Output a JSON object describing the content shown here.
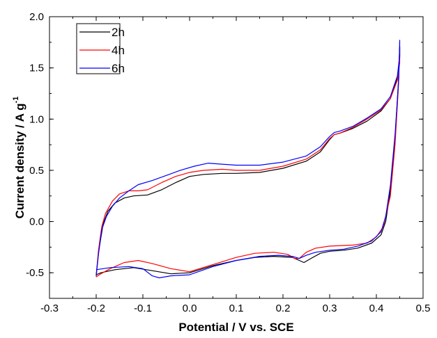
{
  "chart_data": {
    "type": "line",
    "title": "",
    "xlabel": "Potential / V vs. SCE",
    "ylabel": "Current density / A g",
    "ylabel_superscript": "-1",
    "xlim": [
      -0.3,
      0.5
    ],
    "ylim": [
      -0.75,
      2.0
    ],
    "xticks": [
      -0.3,
      -0.2,
      -0.1,
      0.0,
      0.1,
      0.2,
      0.3,
      0.4,
      0.5
    ],
    "xtick_labels": [
      "-0.3",
      "-0.2",
      "-0.1",
      "0.0",
      "0.1",
      "0.2",
      "0.3",
      "0.4",
      "0.5"
    ],
    "yticks": [
      -0.5,
      0.0,
      0.5,
      1.0,
      1.5,
      2.0
    ],
    "ytick_labels": [
      "-0.5",
      "0.0",
      "0.5",
      "1.0",
      "1.5",
      "2.0"
    ],
    "grid": false,
    "legend_position": "top-left",
    "series": [
      {
        "name": "2h",
        "color": "#000000",
        "points": [
          [
            -0.2,
            -0.52
          ],
          [
            -0.195,
            -0.3
          ],
          [
            -0.185,
            -0.02
          ],
          [
            -0.175,
            0.1
          ],
          [
            -0.16,
            0.18
          ],
          [
            -0.14,
            0.23
          ],
          [
            -0.12,
            0.25
          ],
          [
            -0.09,
            0.26
          ],
          [
            -0.06,
            0.31
          ],
          [
            -0.03,
            0.38
          ],
          [
            0.0,
            0.44
          ],
          [
            0.03,
            0.46
          ],
          [
            0.07,
            0.47
          ],
          [
            0.1,
            0.47
          ],
          [
            0.15,
            0.48
          ],
          [
            0.2,
            0.52
          ],
          [
            0.25,
            0.59
          ],
          [
            0.28,
            0.68
          ],
          [
            0.3,
            0.8
          ],
          [
            0.31,
            0.85
          ],
          [
            0.32,
            0.86
          ],
          [
            0.35,
            0.91
          ],
          [
            0.38,
            0.98
          ],
          [
            0.41,
            1.08
          ],
          [
            0.43,
            1.2
          ],
          [
            0.445,
            1.4
          ],
          [
            0.45,
            1.6
          ],
          [
            0.45,
            1.71
          ],
          [
            0.447,
            1.35
          ],
          [
            0.44,
            0.8
          ],
          [
            0.43,
            0.3
          ],
          [
            0.42,
            0.0
          ],
          [
            0.41,
            -0.13
          ],
          [
            0.39,
            -0.21
          ],
          [
            0.36,
            -0.26
          ],
          [
            0.33,
            -0.28
          ],
          [
            0.3,
            -0.29
          ],
          [
            0.28,
            -0.31
          ],
          [
            0.26,
            -0.36
          ],
          [
            0.245,
            -0.4
          ],
          [
            0.235,
            -0.38
          ],
          [
            0.22,
            -0.35
          ],
          [
            0.18,
            -0.34
          ],
          [
            0.14,
            -0.35
          ],
          [
            0.1,
            -0.38
          ],
          [
            0.05,
            -0.43
          ],
          [
            0.0,
            -0.5
          ],
          [
            -0.04,
            -0.51
          ],
          [
            -0.08,
            -0.48
          ],
          [
            -0.12,
            -0.45
          ],
          [
            -0.16,
            -0.47
          ],
          [
            -0.19,
            -0.5
          ],
          [
            -0.2,
            -0.52
          ]
        ]
      },
      {
        "name": "4h",
        "color": "#ff0000",
        "points": [
          [
            -0.2,
            -0.54
          ],
          [
            -0.195,
            -0.28
          ],
          [
            -0.188,
            -0.05
          ],
          [
            -0.18,
            0.08
          ],
          [
            -0.165,
            0.2
          ],
          [
            -0.15,
            0.27
          ],
          [
            -0.13,
            0.3
          ],
          [
            -0.11,
            0.3
          ],
          [
            -0.09,
            0.31
          ],
          [
            -0.06,
            0.38
          ],
          [
            -0.03,
            0.44
          ],
          [
            0.0,
            0.48
          ],
          [
            0.03,
            0.5
          ],
          [
            0.07,
            0.51
          ],
          [
            0.1,
            0.5
          ],
          [
            0.15,
            0.5
          ],
          [
            0.2,
            0.54
          ],
          [
            0.25,
            0.61
          ],
          [
            0.28,
            0.7
          ],
          [
            0.3,
            0.81
          ],
          [
            0.31,
            0.85
          ],
          [
            0.32,
            0.86
          ],
          [
            0.35,
            0.92
          ],
          [
            0.38,
            1.0
          ],
          [
            0.41,
            1.09
          ],
          [
            0.43,
            1.2
          ],
          [
            0.445,
            1.38
          ],
          [
            0.45,
            1.55
          ],
          [
            0.45,
            1.7
          ],
          [
            0.447,
            1.3
          ],
          [
            0.44,
            0.75
          ],
          [
            0.43,
            0.25
          ],
          [
            0.415,
            -0.05
          ],
          [
            0.4,
            -0.15
          ],
          [
            0.38,
            -0.21
          ],
          [
            0.35,
            -0.23
          ],
          [
            0.3,
            -0.24
          ],
          [
            0.27,
            -0.26
          ],
          [
            0.25,
            -0.3
          ],
          [
            0.235,
            -0.36
          ],
          [
            0.225,
            -0.36
          ],
          [
            0.21,
            -0.32
          ],
          [
            0.18,
            -0.3
          ],
          [
            0.14,
            -0.31
          ],
          [
            0.1,
            -0.35
          ],
          [
            0.05,
            -0.42
          ],
          [
            0.0,
            -0.49
          ],
          [
            -0.04,
            -0.46
          ],
          [
            -0.08,
            -0.41
          ],
          [
            -0.11,
            -0.38
          ],
          [
            -0.14,
            -0.4
          ],
          [
            -0.17,
            -0.46
          ],
          [
            -0.19,
            -0.51
          ],
          [
            -0.2,
            -0.54
          ]
        ]
      },
      {
        "name": "6h",
        "color": "#0000ff",
        "points": [
          [
            -0.2,
            -0.53
          ],
          [
            -0.195,
            -0.32
          ],
          [
            -0.188,
            -0.08
          ],
          [
            -0.178,
            0.05
          ],
          [
            -0.165,
            0.15
          ],
          [
            -0.15,
            0.23
          ],
          [
            -0.13,
            0.3
          ],
          [
            -0.11,
            0.36
          ],
          [
            -0.08,
            0.4
          ],
          [
            -0.05,
            0.45
          ],
          [
            -0.02,
            0.5
          ],
          [
            0.01,
            0.54
          ],
          [
            0.04,
            0.57
          ],
          [
            0.07,
            0.56
          ],
          [
            0.1,
            0.55
          ],
          [
            0.15,
            0.55
          ],
          [
            0.2,
            0.58
          ],
          [
            0.25,
            0.64
          ],
          [
            0.28,
            0.73
          ],
          [
            0.3,
            0.83
          ],
          [
            0.31,
            0.87
          ],
          [
            0.32,
            0.88
          ],
          [
            0.35,
            0.93
          ],
          [
            0.38,
            1.01
          ],
          [
            0.41,
            1.1
          ],
          [
            0.43,
            1.22
          ],
          [
            0.445,
            1.42
          ],
          [
            0.45,
            1.62
          ],
          [
            0.45,
            1.77
          ],
          [
            0.448,
            1.4
          ],
          [
            0.44,
            0.85
          ],
          [
            0.43,
            0.35
          ],
          [
            0.42,
            0.05
          ],
          [
            0.41,
            -0.1
          ],
          [
            0.39,
            -0.19
          ],
          [
            0.36,
            -0.24
          ],
          [
            0.33,
            -0.27
          ],
          [
            0.3,
            -0.28
          ],
          [
            0.27,
            -0.3
          ],
          [
            0.25,
            -0.33
          ],
          [
            0.235,
            -0.36
          ],
          [
            0.22,
            -0.34
          ],
          [
            0.19,
            -0.33
          ],
          [
            0.15,
            -0.34
          ],
          [
            0.1,
            -0.38
          ],
          [
            0.05,
            -0.44
          ],
          [
            0.0,
            -0.52
          ],
          [
            -0.04,
            -0.53
          ],
          [
            -0.065,
            -0.55
          ],
          [
            -0.08,
            -0.53
          ],
          [
            -0.1,
            -0.46
          ],
          [
            -0.13,
            -0.44
          ],
          [
            -0.17,
            -0.45
          ],
          [
            -0.2,
            -0.47
          ]
        ]
      }
    ]
  }
}
